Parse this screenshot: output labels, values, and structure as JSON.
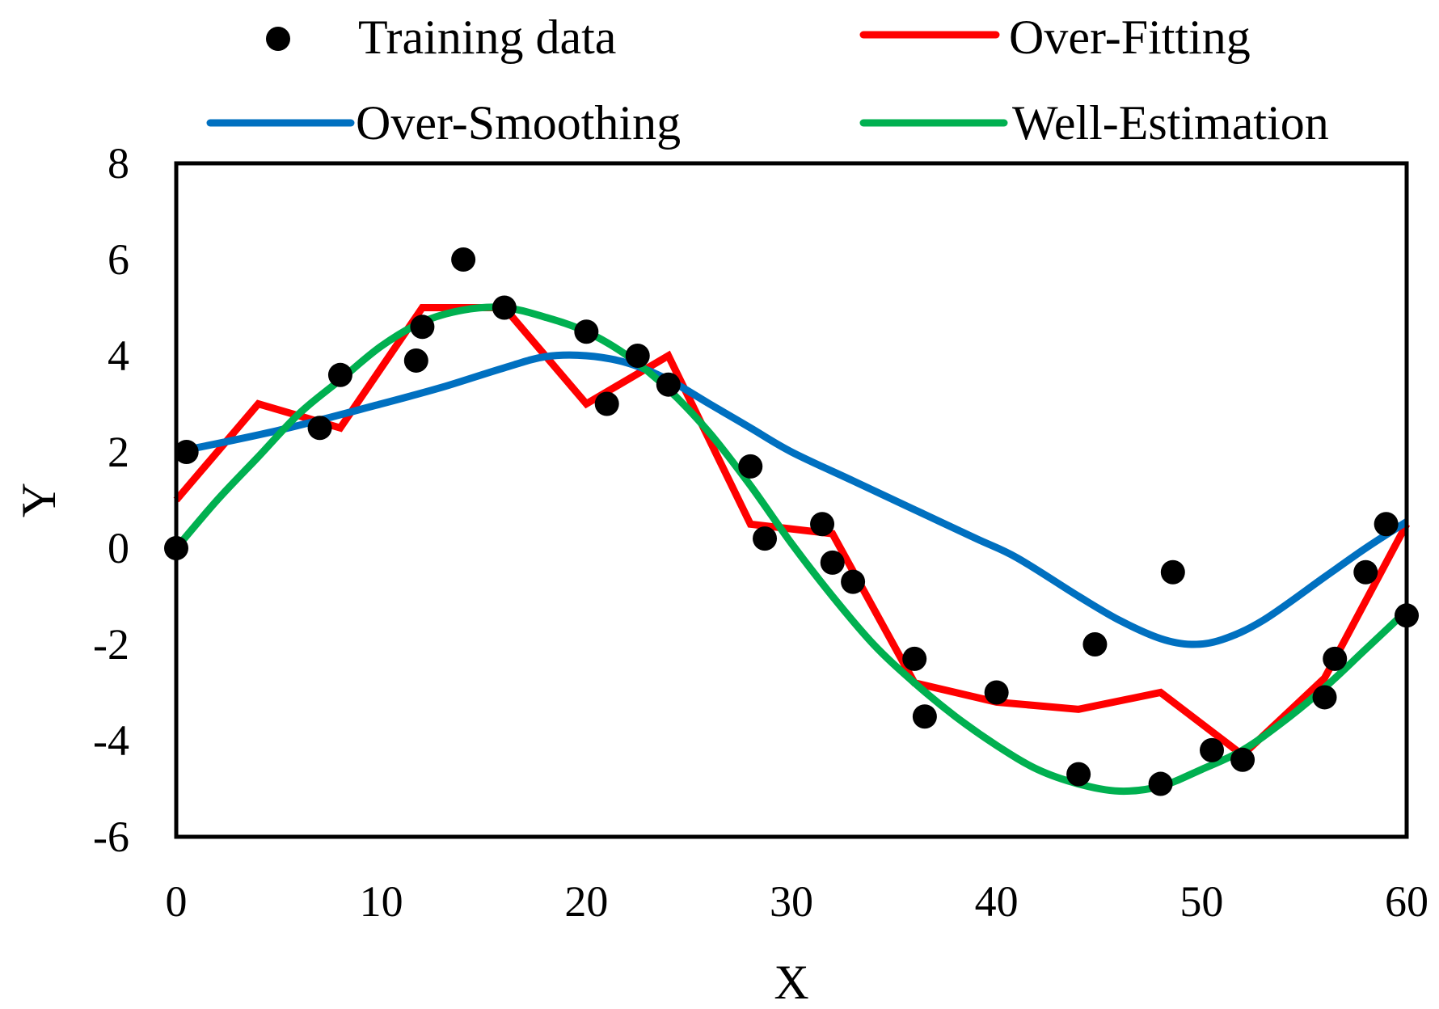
{
  "chart_data": {
    "type": "line",
    "title": "",
    "xlabel": "X",
    "ylabel": "Y",
    "xlim": [
      0,
      60
    ],
    "ylim": [
      -6,
      8
    ],
    "xticks": [
      "0",
      "10",
      "20",
      "30",
      "40",
      "50",
      "60"
    ],
    "yticks": [
      "-6",
      "-4",
      "-2",
      "0",
      "2",
      "4",
      "6",
      "8"
    ],
    "grid": false,
    "legend": "top",
    "series": [
      {
        "name": "Training data",
        "kind": "scatter",
        "color": "#000000",
        "points": [
          [
            0,
            0
          ],
          [
            0.5,
            2
          ],
          [
            7,
            2.5
          ],
          [
            8,
            3.6
          ],
          [
            11.7,
            3.9
          ],
          [
            12,
            4.6
          ],
          [
            14,
            6
          ],
          [
            16,
            5
          ],
          [
            20,
            4.5
          ],
          [
            21,
            3
          ],
          [
            22.5,
            4
          ],
          [
            24,
            3.4
          ],
          [
            28,
            1.7
          ],
          [
            28.7,
            0.2
          ],
          [
            31.5,
            0.5
          ],
          [
            32,
            -0.3
          ],
          [
            33,
            -0.7
          ],
          [
            36,
            -2.3
          ],
          [
            36.5,
            -3.5
          ],
          [
            40,
            -3
          ],
          [
            44,
            -4.7
          ],
          [
            44.8,
            -2
          ],
          [
            48,
            -4.9
          ],
          [
            48.6,
            -0.5
          ],
          [
            50.5,
            -4.2
          ],
          [
            52,
            -4.4
          ],
          [
            56,
            -3.1
          ],
          [
            56.5,
            -2.3
          ],
          [
            58,
            -0.5
          ],
          [
            59,
            0.5
          ],
          [
            60,
            -1.4
          ]
        ]
      },
      {
        "name": "Over-Fitting",
        "kind": "line",
        "color": "#ff0000",
        "points": [
          [
            0,
            1
          ],
          [
            4,
            3
          ],
          [
            8,
            2.5
          ],
          [
            12,
            5
          ],
          [
            16,
            5
          ],
          [
            20,
            3
          ],
          [
            24,
            4
          ],
          [
            28,
            0.5
          ],
          [
            32,
            0.3
          ],
          [
            36,
            -2.8
          ],
          [
            40,
            -3.2
          ],
          [
            44,
            -3.35
          ],
          [
            48,
            -3
          ],
          [
            52,
            -4.3
          ],
          [
            56,
            -2.7
          ],
          [
            60,
            0.5
          ]
        ]
      },
      {
        "name": "Over-Smoothing",
        "kind": "line",
        "color": "#0070c0",
        "points": [
          [
            0,
            2
          ],
          [
            5,
            2.45
          ],
          [
            10,
            3
          ],
          [
            13,
            3.35
          ],
          [
            16,
            3.75
          ],
          [
            18,
            3.98
          ],
          [
            20,
            4
          ],
          [
            22,
            3.85
          ],
          [
            24,
            3.5
          ],
          [
            26,
            3
          ],
          [
            28,
            2.5
          ],
          [
            30,
            2
          ],
          [
            33,
            1.4
          ],
          [
            36,
            0.8
          ],
          [
            39,
            0.2
          ],
          [
            41,
            -0.2
          ],
          [
            44,
            -1
          ],
          [
            46,
            -1.5
          ],
          [
            48,
            -1.88
          ],
          [
            49.5,
            -2
          ],
          [
            51,
            -1.9
          ],
          [
            53,
            -1.5
          ],
          [
            56,
            -0.6
          ],
          [
            58,
            0
          ],
          [
            60,
            0.55
          ]
        ]
      },
      {
        "name": "Well-Estimation",
        "kind": "line",
        "color": "#00b050",
        "points": [
          [
            0,
            0
          ],
          [
            2,
            1
          ],
          [
            4,
            1.9
          ],
          [
            6,
            2.8
          ],
          [
            8,
            3.5
          ],
          [
            10,
            4.2
          ],
          [
            12,
            4.7
          ],
          [
            14,
            4.95
          ],
          [
            16,
            5
          ],
          [
            18,
            4.8
          ],
          [
            20,
            4.5
          ],
          [
            22,
            4
          ],
          [
            24,
            3.3
          ],
          [
            26,
            2.4
          ],
          [
            28,
            1.3
          ],
          [
            30,
            0.1
          ],
          [
            32,
            -1
          ],
          [
            34,
            -2
          ],
          [
            36,
            -2.8
          ],
          [
            38,
            -3.5
          ],
          [
            40,
            -4.1
          ],
          [
            42,
            -4.6
          ],
          [
            44,
            -4.9
          ],
          [
            46,
            -5.05
          ],
          [
            48,
            -4.95
          ],
          [
            50,
            -4.6
          ],
          [
            52,
            -4.2
          ],
          [
            54,
            -3.6
          ],
          [
            56,
            -2.9
          ],
          [
            58,
            -2.1
          ],
          [
            60,
            -1.3
          ]
        ]
      }
    ]
  }
}
